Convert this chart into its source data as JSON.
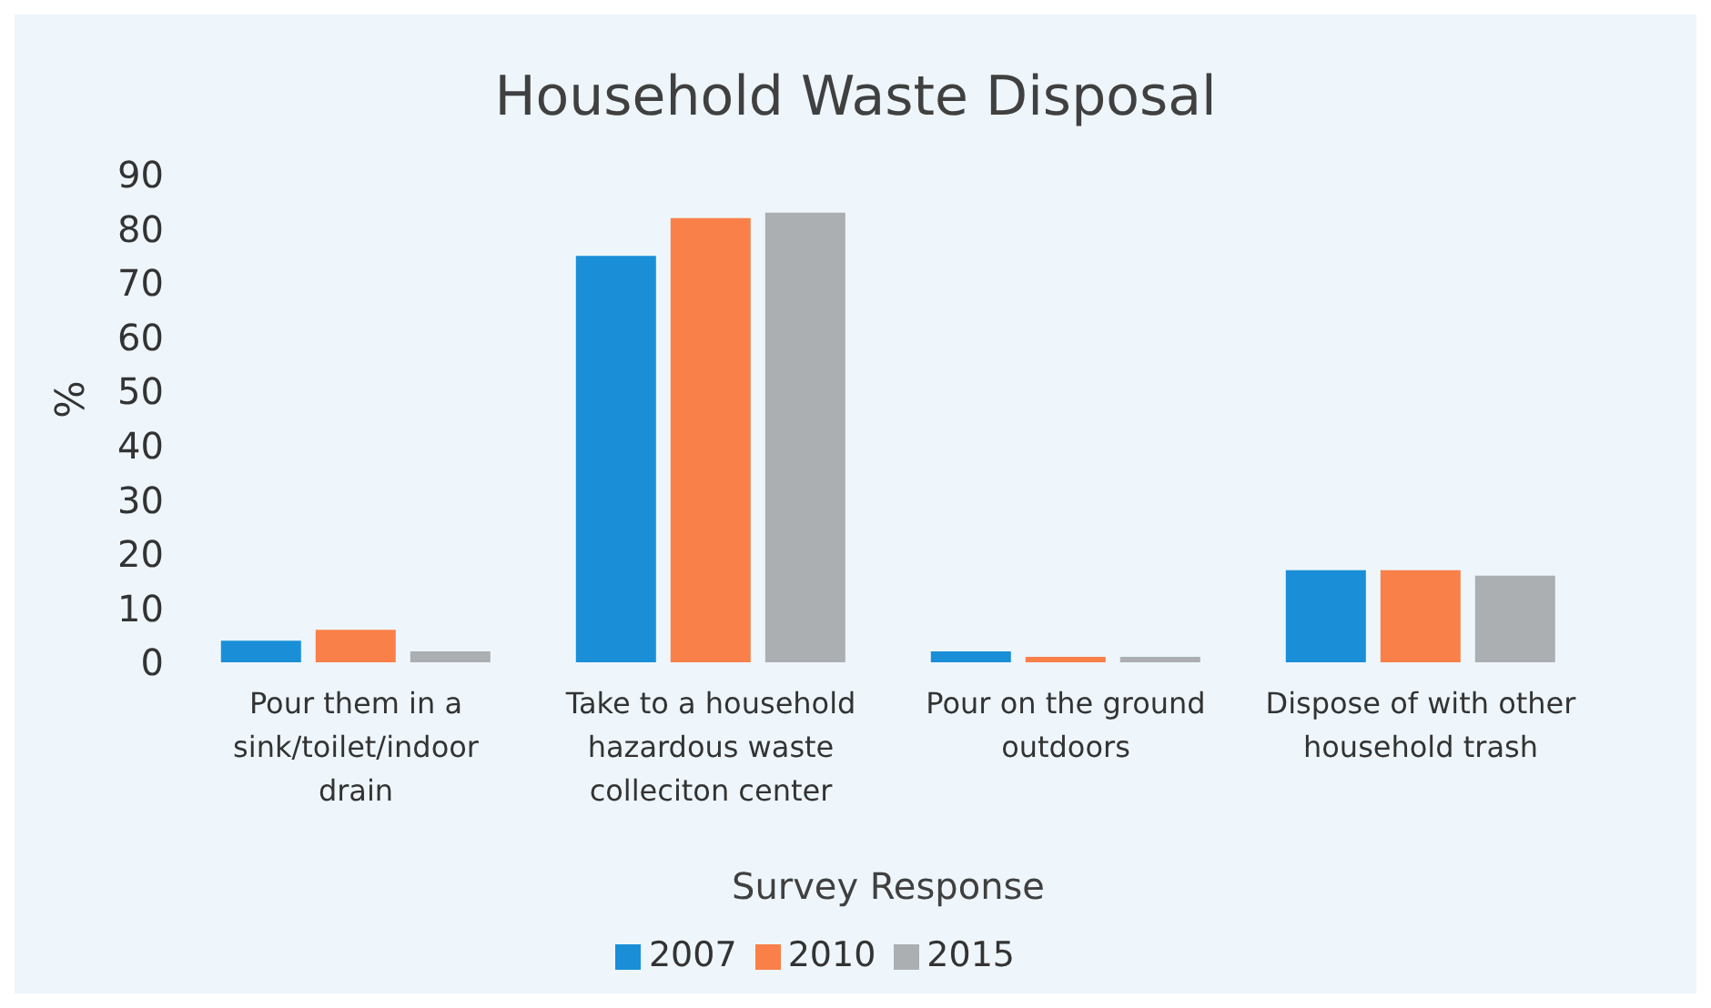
{
  "chart_data": {
    "type": "bar",
    "title": "Household Waste Disposal",
    "xlabel": "Survey Response",
    "ylabel": "%",
    "categories": [
      "Pour them in a sink/toilet/indoor drain",
      "Take to a household hazardous waste colleciton center",
      "Pour on the ground outdoors",
      "Dispose of with other household trash"
    ],
    "series": [
      {
        "name": "2007",
        "color": "#1a8fd8",
        "values": [
          4,
          75,
          2,
          17
        ]
      },
      {
        "name": "2010",
        "color": "#f98049",
        "values": [
          6,
          82,
          1,
          17
        ]
      },
      {
        "name": "2015",
        "color": "#acafb2",
        "values": [
          2,
          83,
          1,
          16
        ]
      }
    ],
    "ylim": [
      0,
      90
    ],
    "yticks": [
      0,
      10,
      20,
      30,
      40,
      50,
      60,
      70,
      80,
      90
    ],
    "grid": false,
    "legend": "bottom"
  }
}
